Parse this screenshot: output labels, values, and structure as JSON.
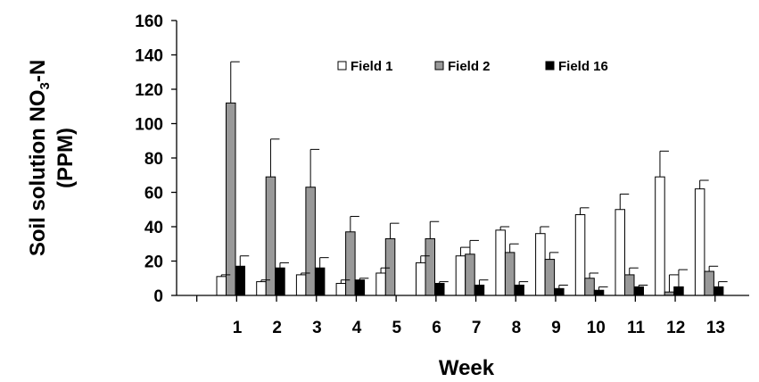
{
  "chart_data": {
    "type": "bar",
    "title": "",
    "xlabel": "Week",
    "ylabel_line1": "Soil solution NO",
    "ylabel_sub": "3",
    "ylabel_line1_suffix": "-N",
    "ylabel_line2": "(PPM)",
    "ylim": [
      0,
      160
    ],
    "yticks": [
      0,
      20,
      40,
      60,
      80,
      100,
      120,
      140,
      160
    ],
    "categories": [
      "1",
      "2",
      "3",
      "4",
      "5",
      "6",
      "7",
      "8",
      "9",
      "10",
      "11",
      "12",
      "13"
    ],
    "legend_position": "top",
    "grid": false,
    "series": [
      {
        "name": "Field 1",
        "color": "#ffffff",
        "values": [
          11,
          8,
          12,
          7,
          13,
          19,
          23,
          38,
          36,
          47,
          50,
          69,
          62
        ],
        "errors": [
          1,
          1,
          1,
          2,
          3,
          4,
          5,
          2,
          4,
          4,
          9,
          15,
          5
        ]
      },
      {
        "name": "Field 2",
        "color": "#999999",
        "values": [
          112,
          69,
          63,
          37,
          33,
          33,
          24,
          25,
          21,
          10,
          12,
          2,
          14
        ],
        "errors": [
          24,
          22,
          22,
          9,
          9,
          10,
          8,
          5,
          4,
          3,
          4,
          10,
          3
        ]
      },
      {
        "name": "Field 16",
        "color": "#000000",
        "values": [
          17,
          16,
          16,
          9,
          0,
          7,
          6,
          6,
          4,
          3,
          5,
          5,
          5
        ],
        "errors": [
          6,
          3,
          6,
          1,
          0,
          1,
          3,
          2,
          2,
          2,
          1,
          10,
          3
        ]
      }
    ]
  }
}
